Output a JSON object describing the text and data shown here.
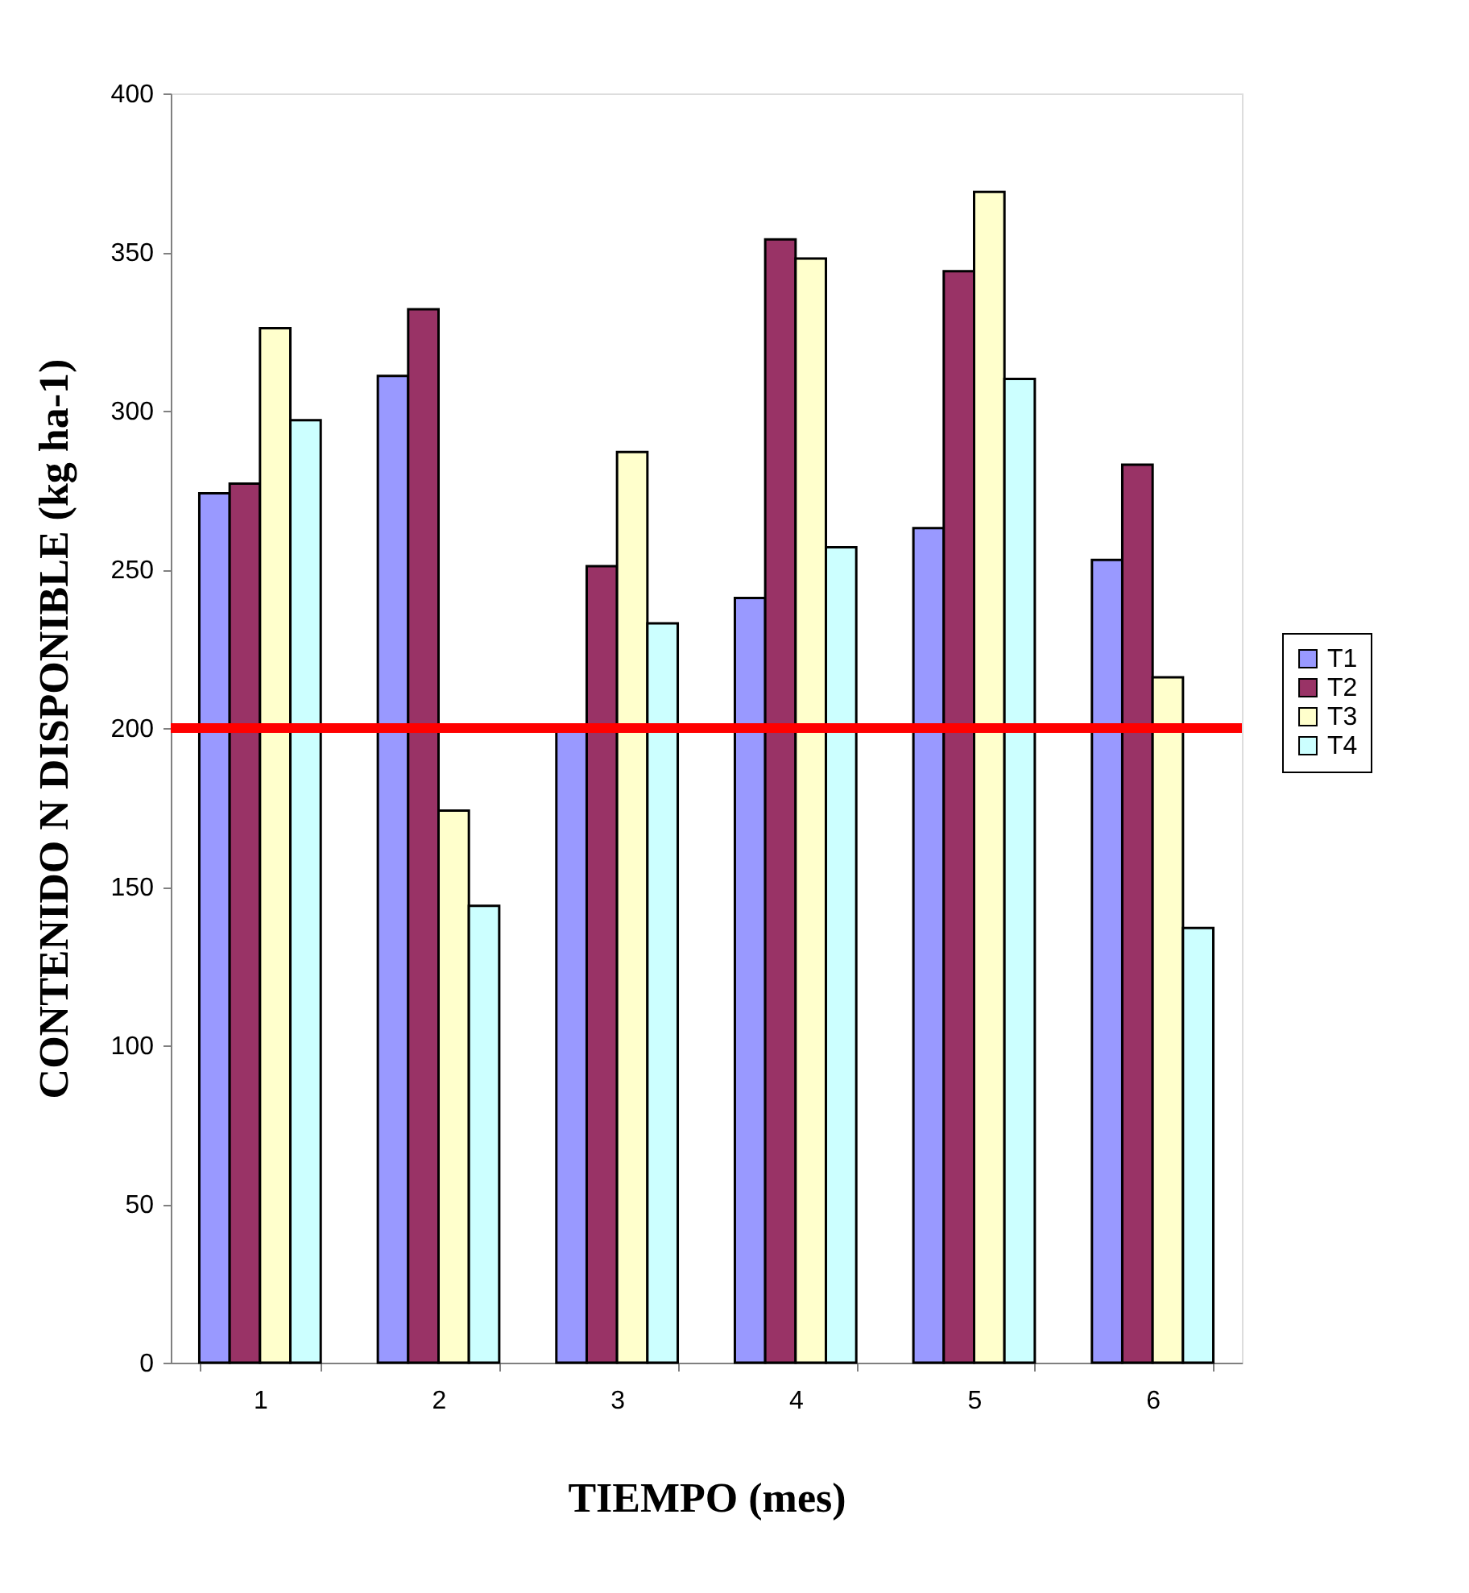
{
  "chart_data": {
    "type": "bar",
    "xlabel": "TIEMPO (mes)",
    "ylabel": "CONTENIDO N DISPONIBLE (kg ha-1)",
    "categories": [
      "1",
      "2",
      "3",
      "4",
      "5",
      "6"
    ],
    "series": [
      {
        "name": "T1",
        "color": "#9999ff",
        "values": [
          274,
          311,
          200,
          241,
          263,
          253
        ]
      },
      {
        "name": "T2",
        "color": "#993366",
        "values": [
          277,
          332,
          251,
          354,
          344,
          283
        ]
      },
      {
        "name": "T3",
        "color": "#ffffcc",
        "values": [
          326,
          174,
          287,
          348,
          369,
          216
        ]
      },
      {
        "name": "T4",
        "color": "#ccffff",
        "values": [
          297,
          144,
          233,
          257,
          310,
          137
        ]
      }
    ],
    "ylim": [
      0,
      400
    ],
    "yticks": [
      0,
      50,
      100,
      150,
      200,
      250,
      300,
      350,
      400
    ],
    "ref_lines": [
      {
        "axis": "y",
        "value": 200,
        "color": "#ff0000"
      }
    ],
    "legend": "right"
  }
}
